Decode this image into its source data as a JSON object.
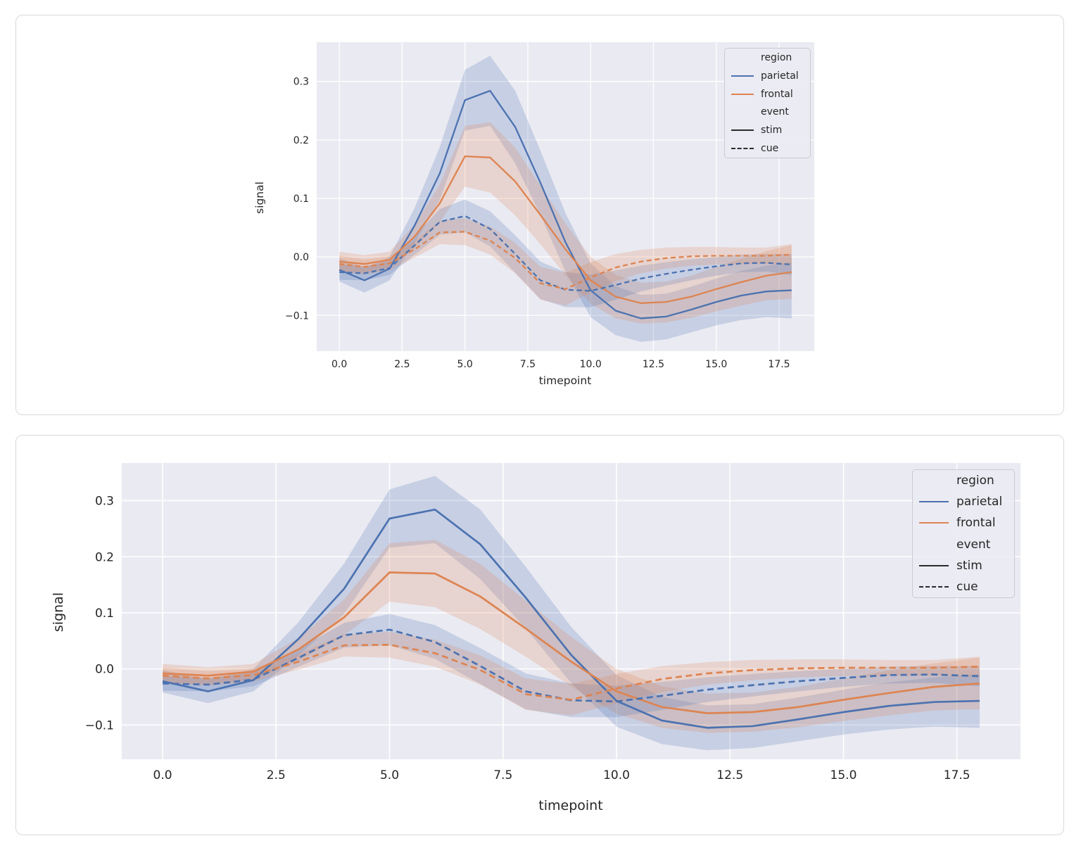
{
  "chart_data": {
    "type": "line",
    "title": "",
    "xlabel": "timepoint",
    "ylabel": "signal",
    "xlim": [
      -0.9,
      18.9
    ],
    "ylim": [
      -0.161,
      0.367
    ],
    "grid": true,
    "x_tick_values": [
      0,
      2.5,
      5,
      7.5,
      10,
      12.5,
      15,
      17.5
    ],
    "x_tick_labels": [
      "0.0",
      "2.5",
      "5.0",
      "7.5",
      "10.0",
      "12.5",
      "15.0",
      "17.5"
    ],
    "y_tick_values": [
      0.3,
      0.2,
      0.1,
      0.0,
      -0.1
    ],
    "y_tick_labels": [
      "0.3",
      "0.2",
      "0.1",
      "0.0",
      "−0.1"
    ],
    "x": [
      0,
      1,
      2,
      3,
      4,
      5,
      6,
      7,
      8,
      9,
      10,
      11,
      12,
      13,
      14,
      15,
      16,
      17,
      18
    ],
    "series": [
      {
        "name": "parietal-stim",
        "region": "parietal",
        "event": "stim",
        "color": "#4c72b0",
        "dash": false,
        "values": [
          -0.022,
          -0.04,
          -0.02,
          0.054,
          0.143,
          0.268,
          0.284,
          0.222,
          0.127,
          0.025,
          -0.057,
          -0.092,
          -0.105,
          -0.102,
          -0.09,
          -0.077,
          -0.066,
          -0.059,
          -0.057
        ],
        "ci": [
          0.02,
          0.021,
          0.02,
          0.03,
          0.045,
          0.052,
          0.06,
          0.062,
          0.055,
          0.05,
          0.046,
          0.042,
          0.04,
          0.039,
          0.039,
          0.04,
          0.042,
          0.044,
          0.048
        ]
      },
      {
        "name": "frontal-stim",
        "region": "frontal",
        "event": "stim",
        "color": "#dd8452",
        "dash": false,
        "values": [
          -0.008,
          -0.012,
          -0.005,
          0.035,
          0.092,
          0.172,
          0.17,
          0.129,
          0.072,
          0.013,
          -0.04,
          -0.068,
          -0.079,
          -0.077,
          -0.068,
          -0.055,
          -0.043,
          -0.032,
          -0.026
        ],
        "ci": [
          0.017,
          0.015,
          0.014,
          0.02,
          0.032,
          0.052,
          0.06,
          0.058,
          0.05,
          0.044,
          0.04,
          0.037,
          0.035,
          0.035,
          0.036,
          0.038,
          0.04,
          0.042,
          0.046
        ]
      },
      {
        "name": "parietal-cue",
        "region": "parietal",
        "event": "cue",
        "color": "#4c72b0",
        "dash": true,
        "values": [
          -0.026,
          -0.028,
          -0.019,
          0.02,
          0.06,
          0.07,
          0.048,
          0.005,
          -0.04,
          -0.056,
          -0.058,
          -0.048,
          -0.037,
          -0.029,
          -0.022,
          -0.016,
          -0.011,
          -0.01,
          -0.013
        ],
        "ci": [
          0.013,
          0.012,
          0.012,
          0.016,
          0.022,
          0.028,
          0.03,
          0.032,
          0.032,
          0.03,
          0.028,
          0.025,
          0.022,
          0.02,
          0.018,
          0.016,
          0.015,
          0.015,
          0.018
        ]
      },
      {
        "name": "frontal-cue",
        "region": "frontal",
        "event": "cue",
        "color": "#dd8452",
        "dash": true,
        "values": [
          -0.012,
          -0.017,
          -0.011,
          0.013,
          0.042,
          0.043,
          0.028,
          -0.002,
          -0.045,
          -0.055,
          -0.035,
          -0.018,
          -0.008,
          -0.002,
          0.001,
          0.002,
          0.002,
          0.002,
          0.004
        ],
        "ci": [
          0.014,
          0.013,
          0.012,
          0.014,
          0.02,
          0.023,
          0.024,
          0.026,
          0.028,
          0.028,
          0.026,
          0.023,
          0.02,
          0.018,
          0.016,
          0.015,
          0.014,
          0.014,
          0.018
        ]
      }
    ],
    "legend_position": "upper right"
  },
  "legend": {
    "entries": [
      {
        "type": "title",
        "label": "region"
      },
      {
        "type": "item",
        "label": "parietal",
        "color": "#4c72b0",
        "dash": false
      },
      {
        "type": "item",
        "label": "frontal",
        "color": "#dd8452",
        "dash": false
      },
      {
        "type": "title",
        "label": "event"
      },
      {
        "type": "item",
        "label": "stim",
        "color": "#2b2b2b",
        "dash": false
      },
      {
        "type": "item",
        "label": "cue",
        "color": "#2b2b2b",
        "dash": true
      }
    ]
  },
  "style": {
    "plot_bg": "#eaeaf2",
    "grid_color": "#ffffff",
    "text_color": "#262626",
    "band_opacity": 0.22
  }
}
